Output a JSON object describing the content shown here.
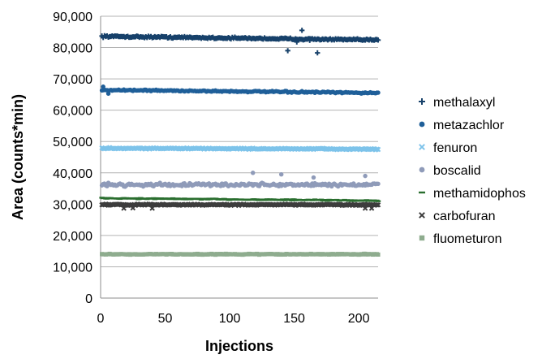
{
  "chart_data": {
    "type": "scatter",
    "title": "",
    "xlabel": "Injections",
    "ylabel": "Area (counts*min)",
    "xlim": [
      0,
      215
    ],
    "ylim": [
      0,
      90000
    ],
    "xticks": [
      "0",
      "50",
      "100",
      "150",
      "200"
    ],
    "yticks": [
      "0",
      "10,000",
      "20,000",
      "30,000",
      "40,000",
      "50,000",
      "60,000",
      "70,000",
      "80,000",
      "90,000"
    ],
    "grid": "horizontal",
    "legend_position": "right",
    "n_points": 215,
    "series": [
      {
        "name": "methalaxyl",
        "marker": "plus",
        "color": "#17416a",
        "mean": 83000,
        "noise": 500,
        "trend": -1200,
        "outliers": [
          [
            145,
            79000
          ],
          [
            156,
            85500
          ],
          [
            168,
            78300
          ],
          [
            162,
            82300
          ],
          [
            152,
            81800
          ]
        ]
      },
      {
        "name": "metazachlor",
        "marker": "circle",
        "color": "#1f5f99",
        "mean": 66000,
        "noise": 450,
        "trend": -1000,
        "outliers": [
          [
            2,
            67500
          ],
          [
            6,
            65300
          ]
        ]
      },
      {
        "name": "fenuron",
        "marker": "x",
        "color": "#7dc3ea",
        "mean": 47700,
        "noise": 350,
        "trend": -300,
        "outliers": []
      },
      {
        "name": "boscalid",
        "marker": "circle",
        "color": "#8f9bb9",
        "mean": 36200,
        "noise": 1000,
        "trend": 0,
        "outliers": [
          [
            118,
            40000
          ],
          [
            140,
            39500
          ],
          [
            205,
            39000
          ],
          [
            165,
            38500
          ]
        ]
      },
      {
        "name": "methamidophos",
        "marker": "dash",
        "color": "#2a6e2f",
        "mean": 31500,
        "noise": 350,
        "trend": -800,
        "outliers": []
      },
      {
        "name": "carbofuran",
        "marker": "x",
        "color": "#3d3d3d",
        "mean": 29800,
        "noise": 350,
        "trend": 0,
        "outliers": [
          [
            18,
            28700
          ],
          [
            25,
            28800
          ],
          [
            40,
            28700
          ],
          [
            205,
            28700
          ],
          [
            210,
            28700
          ]
        ]
      },
      {
        "name": "fluometuron",
        "marker": "square",
        "color": "#8eac8e",
        "mean": 14000,
        "noise": 250,
        "trend": 0,
        "outliers": []
      }
    ]
  }
}
